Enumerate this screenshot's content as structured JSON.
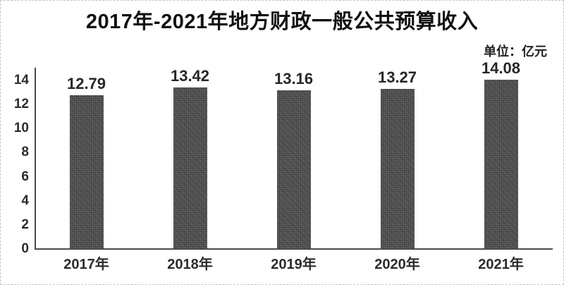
{
  "page": {
    "title": "2017年-2021年地方财政一般公共预算收入",
    "unit_label": "单位：亿元"
  },
  "chart_data": {
    "type": "bar",
    "title": "2017年-2021年地方财政一般公共预算收入",
    "unit": "单位：亿元",
    "categories": [
      "2017年",
      "2018年",
      "2019年",
      "2020年",
      "2021年"
    ],
    "values": [
      12.79,
      13.42,
      13.16,
      13.27,
      14.08
    ],
    "data_labels": [
      "12.79",
      "13.42",
      "13.16",
      "13.27",
      "14.08"
    ],
    "ylim": [
      0,
      14
    ],
    "yticks": [
      0,
      2,
      4,
      6,
      8,
      10,
      12,
      14
    ],
    "xlabel": "",
    "ylabel": "",
    "grid": false,
    "legend": "none",
    "bar_color": "#585858",
    "axis_color": "#4a4a4a",
    "text_color": "#2b2b2b"
  }
}
